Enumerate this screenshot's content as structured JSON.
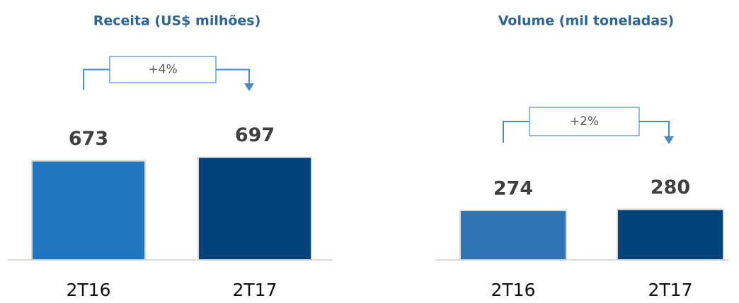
{
  "chart_data": [
    {
      "type": "bar",
      "title": "Receita (US$ milhões)",
      "categories": [
        "2T16",
        "2T17"
      ],
      "values": [
        673,
        697
      ],
      "colors": [
        "#1f77c0",
        "#00427a"
      ],
      "annotation": "+4%"
    },
    {
      "type": "bar",
      "title": "Volume (mil toneladas)",
      "categories": [
        "2T16",
        "2T17"
      ],
      "values": [
        274,
        280
      ],
      "colors": [
        "#2e75b6",
        "#00427a"
      ],
      "annotation": "+2%"
    }
  ]
}
